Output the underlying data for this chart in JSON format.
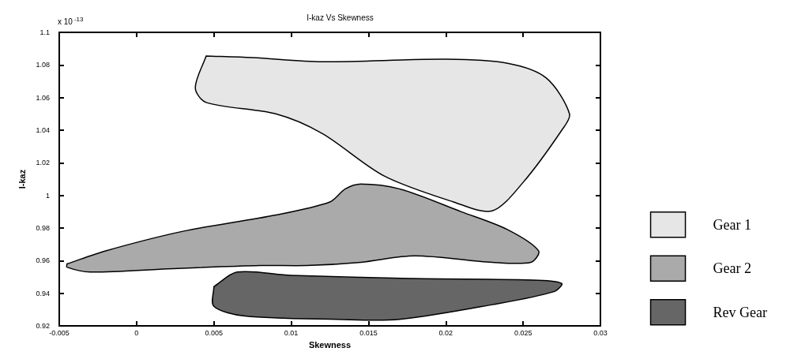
{
  "chart_data": {
    "type": "area",
    "title": "I-kaz Vs Skewness",
    "xlabel": "Skewness",
    "ylabel": "I-kaz",
    "annotations": [
      "x 10$^{-13}$"
    ],
    "xlim": [
      -0.005,
      0.03
    ],
    "xticks": [
      -0.005,
      0,
      0.005,
      0.01,
      0.015,
      0.02,
      0.025,
      0.03
    ],
    "ylim": [
      0.92,
      1.1
    ],
    "yticks": [
      0.92,
      0.94,
      0.96,
      0.98,
      1,
      1.02,
      1.04,
      1.06,
      1.08,
      1.1
    ],
    "grid": false,
    "legend": "right",
    "line_style": "solid",
    "series": [
      {
        "name": "Gear 1",
        "color": "#e6e6e6",
        "x": [
          0.0045,
          0.0075,
          0.012,
          0.02,
          0.024,
          0.0265,
          0.028,
          0.0275,
          0.025,
          0.023,
          0.0205,
          0.016,
          0.012,
          0.009,
          0.0045,
          0.0038,
          0.0045
        ],
        "values": [
          1.0855,
          1.0845,
          1.082,
          1.0835,
          1.081,
          1.072,
          1.05,
          1.04,
          1.008,
          0.9905,
          0.996,
          1.012,
          1.038,
          1.05,
          1.057,
          1.066,
          1.0855
        ]
      },
      {
        "name": "Gear 2",
        "color": "#aaaaaa",
        "x": [
          -0.0045,
          -0.002,
          0.003,
          0.009,
          0.0125,
          0.0135,
          0.0145,
          0.017,
          0.021,
          0.024,
          0.026,
          0.0255,
          0.023,
          0.018,
          0.0145,
          0.011,
          0.008,
          0.002,
          -0.003,
          -0.0045,
          -0.0045
        ],
        "values": [
          0.958,
          0.966,
          0.978,
          0.988,
          0.996,
          1.004,
          1.007,
          1.004,
          0.99,
          0.979,
          0.966,
          0.959,
          0.959,
          0.963,
          0.959,
          0.957,
          0.957,
          0.955,
          0.953,
          0.956,
          0.958
        ]
      },
      {
        "name": "Rev Gear",
        "color": "#666666",
        "x": [
          0.005,
          0.0065,
          0.01,
          0.018,
          0.026,
          0.0275,
          0.027,
          0.023,
          0.017,
          0.013,
          0.007,
          0.005,
          0.005
        ],
        "values": [
          0.944,
          0.953,
          0.951,
          0.949,
          0.948,
          0.946,
          0.941,
          0.933,
          0.924,
          0.924,
          0.926,
          0.932,
          0.944
        ]
      }
    ]
  }
}
